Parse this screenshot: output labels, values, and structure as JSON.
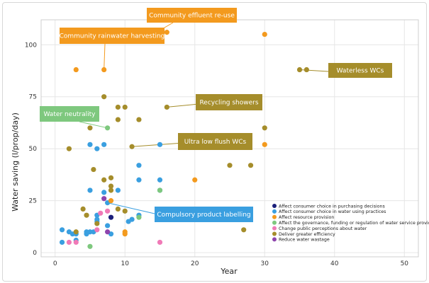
{
  "chart_data": {
    "type": "scatter",
    "title": "",
    "xlabel": "Year",
    "ylabel": "Water saving (l/prop/day)",
    "xlim": [
      -2,
      52
    ],
    "ylim": [
      -2,
      112
    ],
    "xticks": [
      "0",
      "10",
      "20",
      "30",
      "40",
      "50"
    ],
    "yticks": [
      "0",
      "25",
      "50",
      "75",
      "100"
    ],
    "grid": true,
    "legend_position": "bottom-right",
    "series": [
      {
        "name": "Affect consumer choice in purchasing decisions",
        "color": "#1b1f7a",
        "points": [
          [
            8,
            17
          ]
        ]
      },
      {
        "name": "Affect consumer choice in water using practices",
        "color": "#3a9fe0",
        "points": [
          [
            1,
            11
          ],
          [
            1,
            5
          ],
          [
            2,
            10
          ],
          [
            2.5,
            9
          ],
          [
            3,
            6
          ],
          [
            3,
            9
          ],
          [
            4.5,
            10
          ],
          [
            4.5,
            9
          ],
          [
            5,
            10
          ],
          [
            5.5,
            10
          ],
          [
            5,
            30
          ],
          [
            5,
            52
          ],
          [
            6,
            15
          ],
          [
            6,
            16
          ],
          [
            6,
            18
          ],
          [
            6,
            50
          ],
          [
            7,
            52
          ],
          [
            7,
            29
          ],
          [
            7.5,
            24
          ],
          [
            7.5,
            13
          ],
          [
            8,
            9
          ],
          [
            9,
            30
          ],
          [
            10.5,
            15
          ],
          [
            11,
            16
          ],
          [
            12,
            18
          ],
          [
            12,
            35
          ],
          [
            12,
            42
          ],
          [
            15,
            52
          ],
          [
            15,
            35
          ],
          [
            15,
            30
          ]
        ]
      },
      {
        "name": "Affect resource provision",
        "color": "#f39a1e",
        "points": [
          [
            3,
            88
          ],
          [
            7,
            88
          ],
          [
            14,
            105
          ],
          [
            16,
            106
          ],
          [
            30,
            105
          ],
          [
            30,
            52
          ],
          [
            20,
            35
          ],
          [
            8,
            25
          ],
          [
            10,
            10
          ],
          [
            10,
            9
          ]
        ]
      },
      {
        "name": "Affect the governance, funding or regulation of water service providers",
        "color": "#7ec87e",
        "points": [
          [
            5,
            3
          ],
          [
            7.5,
            60
          ],
          [
            15,
            30
          ],
          [
            12,
            17
          ]
        ]
      },
      {
        "name": "Change public perceptions about water",
        "color": "#f07ab7",
        "points": [
          [
            2,
            5
          ],
          [
            3,
            5
          ],
          [
            6,
            11
          ],
          [
            6.5,
            19
          ],
          [
            7.5,
            20
          ],
          [
            15,
            5
          ]
        ]
      },
      {
        "name": "Deliver greater efficiency",
        "color": "#a58d2b",
        "points": [
          [
            2,
            50
          ],
          [
            3,
            10
          ],
          [
            4,
            21
          ],
          [
            4.5,
            18
          ],
          [
            5,
            60
          ],
          [
            5.5,
            40
          ],
          [
            6,
            14
          ],
          [
            7,
            35
          ],
          [
            7,
            75
          ],
          [
            8,
            36
          ],
          [
            8,
            32
          ],
          [
            8,
            30
          ],
          [
            9,
            70
          ],
          [
            9,
            64
          ],
          [
            9,
            21
          ],
          [
            10,
            20
          ],
          [
            10,
            70
          ],
          [
            11,
            51
          ],
          [
            12,
            64
          ],
          [
            16,
            70
          ],
          [
            25,
            42
          ],
          [
            28,
            42
          ],
          [
            27,
            11
          ],
          [
            30,
            60
          ],
          [
            35,
            88
          ],
          [
            36,
            88
          ]
        ]
      },
      {
        "name": "Reduce water wastage",
        "color": "#8e44ad",
        "points": [
          [
            7,
            26
          ],
          [
            7.5,
            10
          ]
        ]
      }
    ],
    "annotations": [
      {
        "text": "Community effluent re-use",
        "color": "#f39a1e",
        "point": [
          14,
          105
        ]
      },
      {
        "text": "Community rainwater harvesting",
        "color": "#f39a1e",
        "point": [
          7,
          88
        ]
      },
      {
        "text": "Waterless WCs",
        "color": "#a58d2b",
        "point": [
          35,
          88
        ]
      },
      {
        "text": "Water neutrality",
        "color": "#7ec87e",
        "point": [
          7.5,
          60
        ]
      },
      {
        "text": "Recycling showers",
        "color": "#a58d2b",
        "point": [
          16,
          70
        ]
      },
      {
        "text": "Ultra low flush  WCs",
        "color": "#a58d2b",
        "point": [
          11,
          51
        ]
      },
      {
        "text": "Compulsory product labelling",
        "color": "#3a9fe0",
        "point": [
          7.5,
          24
        ]
      }
    ]
  }
}
